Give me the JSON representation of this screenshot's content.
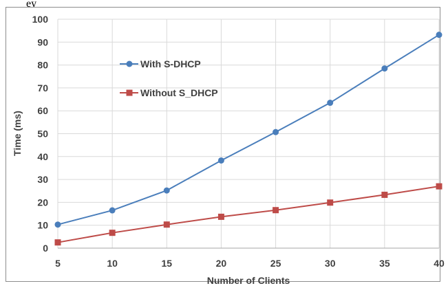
{
  "top_caption": "ey",
  "chart_data": {
    "type": "line",
    "title": "",
    "xlabel": "Number of Clients",
    "ylabel": "Time (ms)",
    "x": [
      5,
      10,
      15,
      20,
      25,
      30,
      35,
      40
    ],
    "xlim": [
      5,
      40
    ],
    "ylim": [
      0,
      100
    ],
    "x_ticks": [
      5,
      10,
      15,
      20,
      25,
      30,
      35,
      40
    ],
    "y_ticks": [
      0,
      10,
      20,
      30,
      40,
      50,
      60,
      70,
      80,
      90,
      100
    ],
    "grid": true,
    "legend_position": "top-left",
    "series": [
      {
        "name": "With S-DHCP",
        "color": "#4a7ebb",
        "marker": "circle",
        "values": [
          10.3,
          16.5,
          25.2,
          38.3,
          50.7,
          63.5,
          78.5,
          93.2
        ]
      },
      {
        "name": "Without S_DHCP",
        "color": "#be4b48",
        "marker": "square",
        "values": [
          2.5,
          6.7,
          10.3,
          13.7,
          16.6,
          19.9,
          23.3,
          27.0
        ]
      }
    ]
  }
}
